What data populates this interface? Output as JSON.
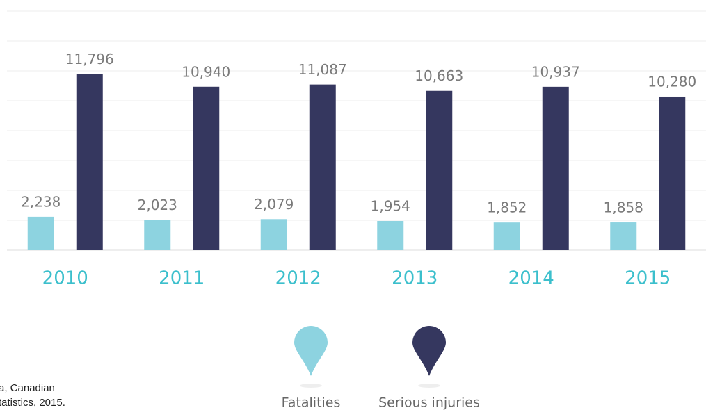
{
  "chart_data": {
    "type": "bar",
    "categories": [
      "2010",
      "2011",
      "2012",
      "2013",
      "2014",
      "2015"
    ],
    "series": [
      {
        "name": "Fatalities",
        "color": "#8dd3e0",
        "values": [
          2238,
          2023,
          2079,
          1954,
          1852,
          1858
        ],
        "value_labels": [
          "2,238",
          "2,023",
          "2,079",
          "1,954",
          "1,852",
          "1,858"
        ]
      },
      {
        "name": "Serious injuries",
        "color": "#35375f",
        "values": [
          11796,
          10940,
          11087,
          10663,
          10937,
          10280
        ],
        "value_labels": [
          "11,796",
          "10,940",
          "11,087",
          "10,663",
          "10,937",
          "10,280"
        ]
      }
    ],
    "ylim": [
      0,
      16000
    ],
    "yticks": [
      0,
      2000,
      4000,
      6000,
      8000,
      10000,
      12000,
      14000,
      16000
    ],
    "grid": true,
    "legend": "bottom",
    "source": [
      "a, Canadian",
      "tatistics, 2015."
    ]
  }
}
